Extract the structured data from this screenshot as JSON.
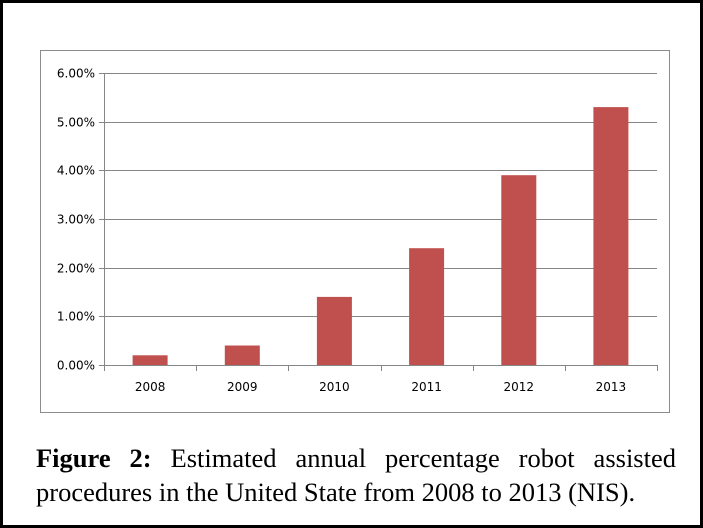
{
  "caption": {
    "label": "Figure 2:",
    "text": "Estimated annual percentage robot assisted procedures in the United State from 2008 to 2013 (NIS)."
  },
  "colors": {
    "bar": "#c0504d",
    "grid": "#868686",
    "axis": "#868686",
    "text": "#000000"
  },
  "chart_data": {
    "type": "bar",
    "title": "",
    "xlabel": "",
    "ylabel": "",
    "categories": [
      "2008",
      "2009",
      "2010",
      "2011",
      "2012",
      "2013"
    ],
    "values": [
      0.2,
      0.4,
      1.4,
      2.4,
      3.9,
      5.3
    ],
    "value_unit": "%",
    "ylim": [
      0,
      6
    ],
    "yticks": [
      "0.00%",
      "1.00%",
      "2.00%",
      "3.00%",
      "4.00%",
      "5.00%",
      "6.00%"
    ],
    "grid": true,
    "legend": "none"
  }
}
